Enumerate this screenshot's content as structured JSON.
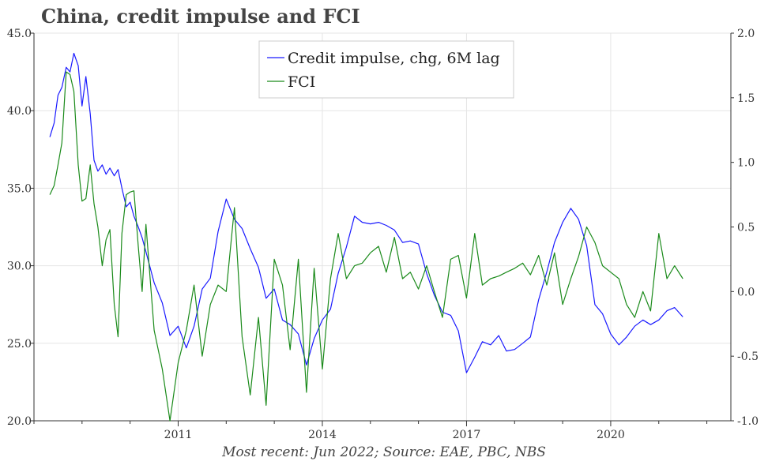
{
  "title": "China, credit impulse and FCI",
  "source": "Most recent: Jun 2022; Source: EAE, PBC, NBS",
  "chart_data": {
    "type": "line",
    "title": "China, credit impulse and FCI",
    "x_range": [
      2008.0,
      2022.5
    ],
    "x_ticks": [
      2011,
      2014,
      2017,
      2020
    ],
    "x_tick_labels": [
      "2011",
      "2014",
      "2017",
      "2020"
    ],
    "y_left": {
      "range": [
        20.0,
        45.0
      ],
      "ticks": [
        20.0,
        25.0,
        30.0,
        35.0,
        40.0,
        45.0
      ],
      "tick_labels": [
        "20.0",
        "25.0",
        "30.0",
        "35.0",
        "40.0",
        "45.0"
      ]
    },
    "y_right": {
      "range": [
        -1.0,
        2.0
      ],
      "ticks": [
        -1.0,
        -0.5,
        0.0,
        0.5,
        1.0,
        1.5,
        2.0
      ],
      "tick_labels": [
        "-1.0",
        "-0.5",
        "0.0",
        "0.5",
        "1.0",
        "1.5",
        "2.0"
      ]
    },
    "grid": true,
    "legend_position": "top-center",
    "series": [
      {
        "name": "Credit impulse, chg, 6M lag",
        "axis": "left",
        "color": "#1a1aff",
        "x": [
          2008.33,
          2008.42,
          2008.5,
          2008.58,
          2008.67,
          2008.75,
          2008.83,
          2008.92,
          2009.0,
          2009.08,
          2009.17,
          2009.25,
          2009.33,
          2009.42,
          2009.5,
          2009.58,
          2009.67,
          2009.75,
          2009.83,
          2009.92,
          2010.0,
          2010.08,
          2010.17,
          2010.25,
          2010.33,
          2010.5,
          2010.67,
          2010.83,
          2011.0,
          2011.17,
          2011.33,
          2011.5,
          2011.67,
          2011.83,
          2012.0,
          2012.17,
          2012.33,
          2012.5,
          2012.67,
          2012.83,
          2013.0,
          2013.17,
          2013.33,
          2013.5,
          2013.67,
          2013.83,
          2014.0,
          2014.17,
          2014.33,
          2014.5,
          2014.67,
          2014.83,
          2015.0,
          2015.17,
          2015.33,
          2015.5,
          2015.67,
          2015.83,
          2016.0,
          2016.17,
          2016.33,
          2016.5,
          2016.67,
          2016.83,
          2017.0,
          2017.17,
          2017.33,
          2017.5,
          2017.67,
          2017.83,
          2018.0,
          2018.17,
          2018.33,
          2018.5,
          2018.67,
          2018.83,
          2019.0,
          2019.17,
          2019.33,
          2019.5,
          2019.67,
          2019.83,
          2020.0,
          2020.17,
          2020.33,
          2020.5,
          2020.67,
          2020.83,
          2021.0,
          2021.17,
          2021.33,
          2021.5
        ],
        "values": [
          38.3,
          39.2,
          41.0,
          41.5,
          42.8,
          42.5,
          43.7,
          42.9,
          40.3,
          42.2,
          39.8,
          36.8,
          36.1,
          36.5,
          35.9,
          36.3,
          35.8,
          36.2,
          35.0,
          33.8,
          34.1,
          33.2,
          32.5,
          31.8,
          30.9,
          28.9,
          27.6,
          25.5,
          26.1,
          24.7,
          26.1,
          28.5,
          29.2,
          32.2,
          34.3,
          33.0,
          32.4,
          31.1,
          29.9,
          27.9,
          28.5,
          26.5,
          26.2,
          25.6,
          23.6,
          25.3,
          26.5,
          27.2,
          29.5,
          31.2,
          33.2,
          32.8,
          32.7,
          32.8,
          32.6,
          32.3,
          31.5,
          31.6,
          31.4,
          29.5,
          28.1,
          27.0,
          26.8,
          25.8,
          23.1,
          24.1,
          25.1,
          24.9,
          25.5,
          24.5,
          24.6,
          25.0,
          25.4,
          27.8,
          29.6,
          31.5,
          32.8,
          33.7,
          33.0,
          31.3,
          27.5,
          26.9,
          25.6,
          24.9,
          25.4,
          26.1,
          26.5,
          26.2,
          26.5,
          27.1,
          27.3,
          26.7
        ]
      },
      {
        "name": "FCI",
        "axis": "right",
        "color": "#1a8a1a",
        "x": [
          2008.33,
          2008.42,
          2008.5,
          2008.58,
          2008.67,
          2008.75,
          2008.83,
          2008.92,
          2009.0,
          2009.08,
          2009.17,
          2009.25,
          2009.33,
          2009.42,
          2009.5,
          2009.58,
          2009.67,
          2009.75,
          2009.83,
          2009.92,
          2010.0,
          2010.08,
          2010.17,
          2010.25,
          2010.33,
          2010.5,
          2010.67,
          2010.83,
          2011.0,
          2011.17,
          2011.33,
          2011.5,
          2011.67,
          2011.83,
          2012.0,
          2012.17,
          2012.33,
          2012.5,
          2012.67,
          2012.83,
          2013.0,
          2013.17,
          2013.33,
          2013.5,
          2013.67,
          2013.83,
          2014.0,
          2014.17,
          2014.33,
          2014.5,
          2014.67,
          2014.83,
          2015.0,
          2015.17,
          2015.33,
          2015.5,
          2015.67,
          2015.83,
          2016.0,
          2016.17,
          2016.33,
          2016.5,
          2016.67,
          2016.83,
          2017.0,
          2017.17,
          2017.33,
          2017.5,
          2017.67,
          2017.83,
          2018.0,
          2018.17,
          2018.33,
          2018.5,
          2018.67,
          2018.83,
          2019.0,
          2019.17,
          2019.33,
          2019.5,
          2019.67,
          2019.83,
          2020.0,
          2020.17,
          2020.33,
          2020.5,
          2020.67,
          2020.83,
          2021.0,
          2021.17,
          2021.33,
          2021.5
        ],
        "values": [
          0.75,
          0.82,
          0.98,
          1.15,
          1.7,
          1.68,
          1.55,
          0.98,
          0.7,
          0.72,
          0.98,
          0.68,
          0.5,
          0.2,
          0.4,
          0.48,
          -0.1,
          -0.35,
          0.45,
          0.75,
          0.77,
          0.78,
          0.35,
          0.0,
          0.52,
          -0.3,
          -0.6,
          -1.0,
          -0.55,
          -0.3,
          0.05,
          -0.5,
          -0.1,
          0.05,
          0.0,
          0.65,
          -0.35,
          -0.8,
          -0.2,
          -0.88,
          0.25,
          0.05,
          -0.45,
          0.25,
          -0.78,
          0.18,
          -0.6,
          0.1,
          0.45,
          0.1,
          0.2,
          0.22,
          0.3,
          0.35,
          0.15,
          0.42,
          0.1,
          0.15,
          0.02,
          0.2,
          0.0,
          -0.2,
          0.25,
          0.28,
          -0.05,
          0.45,
          0.05,
          0.1,
          0.12,
          0.15,
          0.18,
          0.22,
          0.13,
          0.28,
          0.05,
          0.3,
          -0.1,
          0.1,
          0.27,
          0.5,
          0.38,
          0.2,
          0.15,
          0.1,
          -0.1,
          -0.2,
          0.0,
          -0.15,
          0.45,
          0.1,
          0.2,
          0.1
        ]
      }
    ]
  }
}
